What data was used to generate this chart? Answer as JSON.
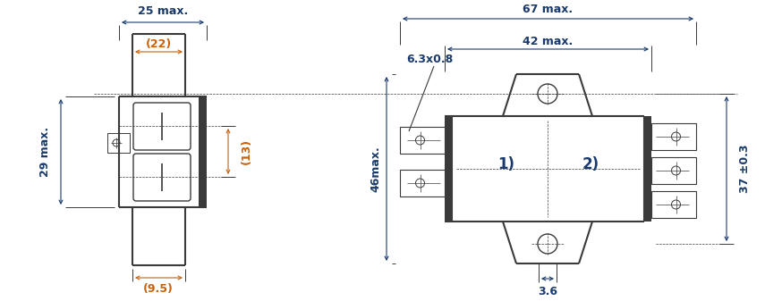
{
  "bg_color": "#ffffff",
  "line_color": "#3a3a3a",
  "dim_color": "#1a3a6b",
  "orange_color": "#c8610a",
  "figsize": [
    8.74,
    3.37
  ],
  "dpi": 100,
  "annotations": {
    "dim_25_text": "25 max.",
    "dim_22_text": "(22)",
    "dim_29_text": "29 max.",
    "dim_13_text": "(13)",
    "dim_9p5_text": "(9.5)",
    "dim_67_text": "67 max.",
    "dim_42_text": "42 max.",
    "dim_46_text": "46max.",
    "dim_37_text": "37 ±0.3",
    "dim_3p6_text": "3.6",
    "label_6p3_text": "6.3x0.8",
    "label_1_text": "1)",
    "label_2_text": "2)"
  }
}
